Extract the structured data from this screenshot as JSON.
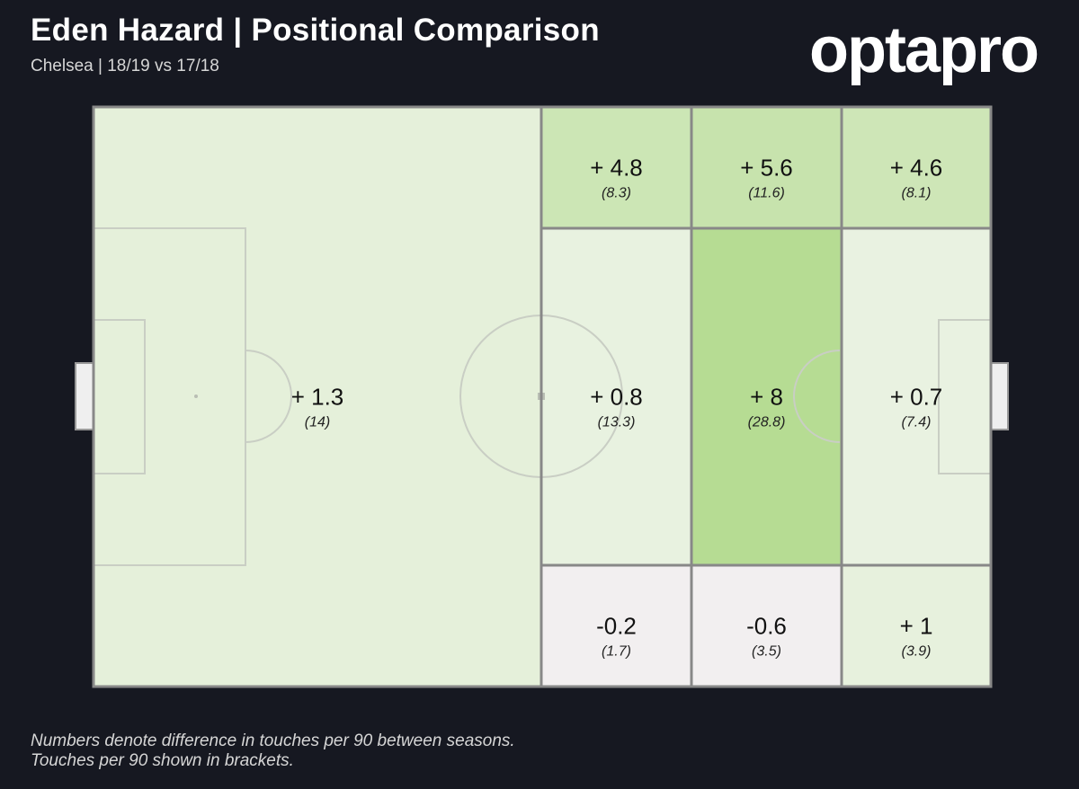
{
  "header": {
    "title": "Eden Hazard | Positional Comparison",
    "subtitle": "Chelsea | 18/19 vs 17/18",
    "logo_text": "optapro"
  },
  "footer": {
    "line1": "Numbers denote difference in touches per 90 between seasons.",
    "line2": "Touches per 90 shown in brackets."
  },
  "colors": {
    "background": "#161821",
    "pitch_base": "#ecf3e4",
    "grid_line": "#888888",
    "pitch_marking": "#c9cec4",
    "scale_negative": "#f2eff0",
    "scale_low": "#eef4e8",
    "scale_high": "#b6dc93"
  },
  "chart_data": {
    "type": "heatmap",
    "title": "Eden Hazard | Positional Comparison",
    "subtitle": "Chelsea | 18/19 vs 17/18",
    "metric": "difference in touches per 90 between seasons",
    "zones": [
      {
        "id": "own-half",
        "label": "+ 1.3",
        "value": 1.3,
        "touches": "(14)"
      },
      {
        "id": "left-mid-top",
        "label": "+ 4.8",
        "value": 4.8,
        "touches": "(8.3)"
      },
      {
        "id": "center-top",
        "label": "+ 5.6",
        "value": 5.6,
        "touches": "(11.6)"
      },
      {
        "id": "right-top",
        "label": "+ 4.6",
        "value": 4.6,
        "touches": "(8.1)"
      },
      {
        "id": "left-mid-center",
        "label": "+ 0.8",
        "value": 0.8,
        "touches": "(13.3)"
      },
      {
        "id": "center-center",
        "label": "+ 8",
        "value": 8,
        "touches": "(28.8)"
      },
      {
        "id": "right-center",
        "label": "+ 0.7",
        "value": 0.7,
        "touches": "(7.4)"
      },
      {
        "id": "left-mid-bottom",
        "label": "-0.2",
        "value": -0.2,
        "touches": "(1.7)"
      },
      {
        "id": "center-bottom",
        "label": "-0.6",
        "value": -0.6,
        "touches": "(3.5)"
      },
      {
        "id": "right-bottom",
        "label": "+ 1",
        "value": 1,
        "touches": "(3.9)"
      }
    ]
  }
}
